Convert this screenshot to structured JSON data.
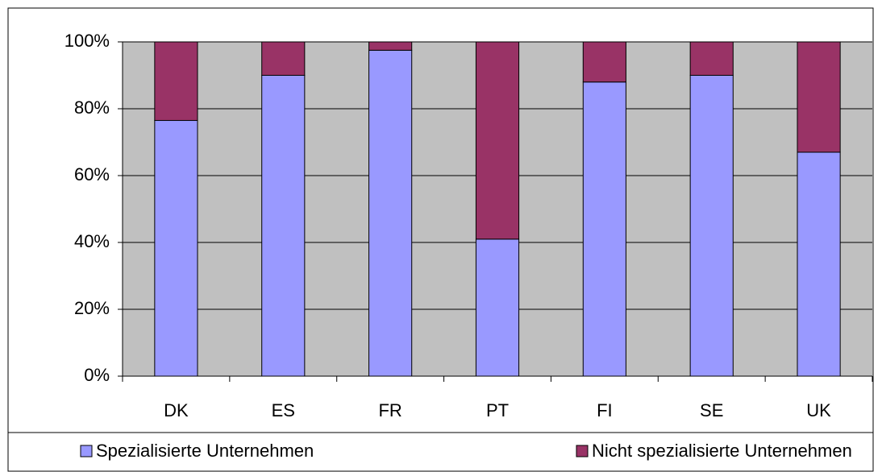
{
  "chart_data": {
    "type": "stacked_bar",
    "categories": [
      "DK",
      "ES",
      "FR",
      "PT",
      "FI",
      "SE",
      "UK"
    ],
    "series": [
      {
        "name": "Spezialisierte Unternehmen",
        "color": "#9999ff",
        "values": [
          76.5,
          90,
          97.5,
          41,
          88,
          90,
          67
        ]
      },
      {
        "name": "Nicht spezialisierte Unternehmen",
        "color": "#993366",
        "values": [
          23.5,
          10,
          2.5,
          59,
          12,
          10,
          33
        ]
      }
    ],
    "ylim": [
      0,
      100
    ],
    "yticks": [
      {
        "value": 0,
        "label": "0%"
      },
      {
        "value": 20,
        "label": "20%"
      },
      {
        "value": 40,
        "label": "40%"
      },
      {
        "value": 60,
        "label": "60%"
      },
      {
        "value": 80,
        "label": "80%"
      },
      {
        "value": 100,
        "label": "100%"
      }
    ],
    "grid": true,
    "legend": "bottom"
  }
}
